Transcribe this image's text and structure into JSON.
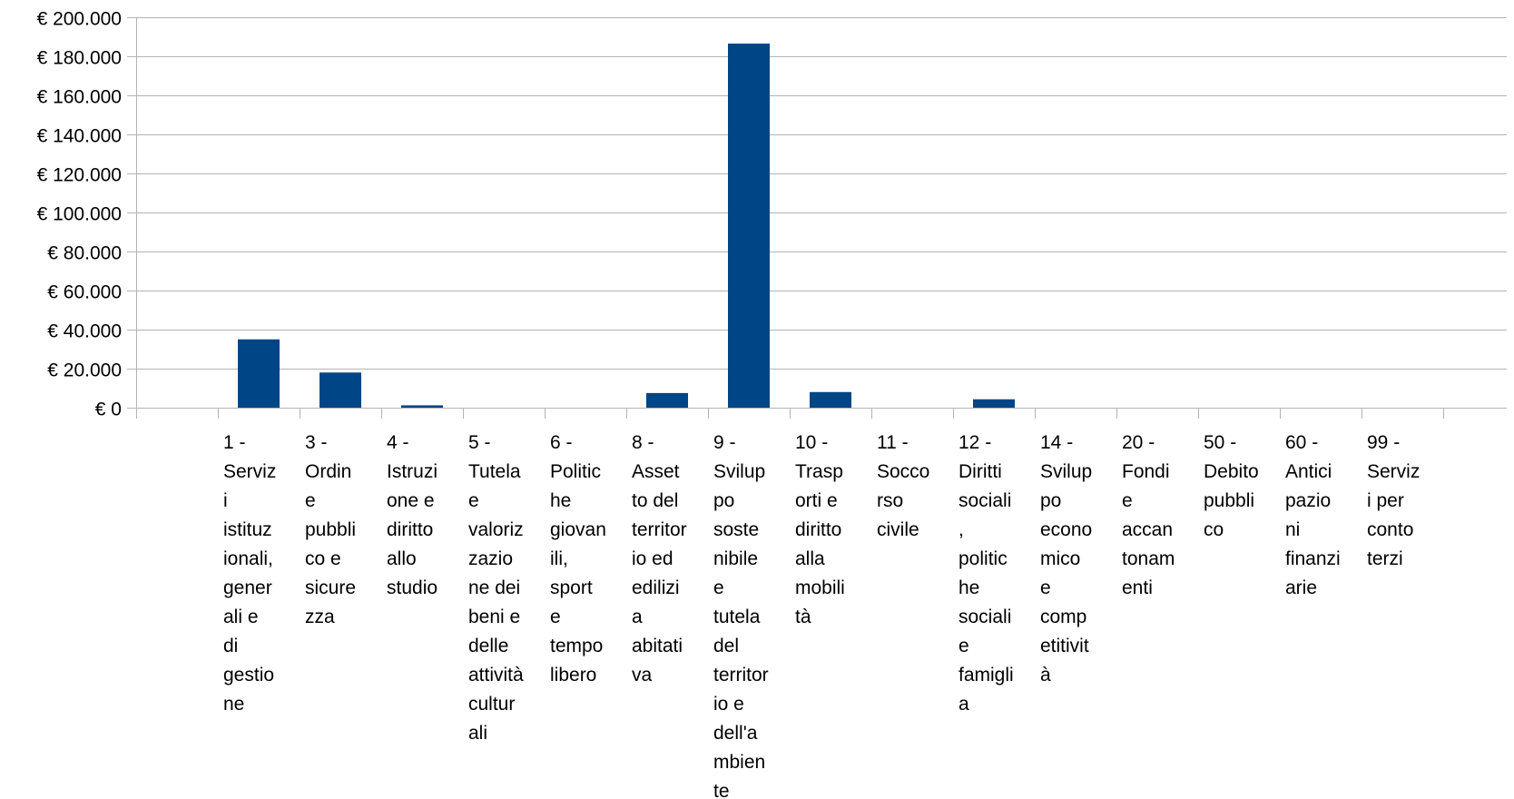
{
  "chart_data": {
    "type": "bar",
    "title": "",
    "xlabel": "",
    "ylabel": "",
    "ylim": [
      0,
      200000
    ],
    "grid": true,
    "legend": "none",
    "bar_color": "#004586",
    "y_ticks": [
      {
        "value": 0,
        "label": "€ 0"
      },
      {
        "value": 20000,
        "label": "€ 20.000"
      },
      {
        "value": 40000,
        "label": "€ 40.000"
      },
      {
        "value": 60000,
        "label": "€ 60.000"
      },
      {
        "value": 80000,
        "label": "€ 80.000"
      },
      {
        "value": 100000,
        "label": "€ 100.000"
      },
      {
        "value": 120000,
        "label": "€ 120.000"
      },
      {
        "value": 140000,
        "label": "€ 140.000"
      },
      {
        "value": 160000,
        "label": "€ 160.000"
      },
      {
        "value": 180000,
        "label": "€ 180.000"
      },
      {
        "value": 200000,
        "label": "€ 200.000"
      }
    ],
    "categories": [
      {
        "label": "",
        "lines": [],
        "value": 0
      },
      {
        "label": "1 - Servizi istituzionali, generali e di gestione",
        "lines": [
          "1 -",
          "Serviz",
          "i",
          "istituz",
          "ionali,",
          "gener",
          "ali e",
          "di",
          "gestio",
          "ne"
        ],
        "value": 35000
      },
      {
        "label": "3 - Ordine pubblico e sicurezza",
        "lines": [
          "3 -",
          "Ordin",
          "e",
          "pubbli",
          "co e",
          "sicure",
          "zza"
        ],
        "value": 18000
      },
      {
        "label": "4 - Istruzione e diritto allo studio",
        "lines": [
          "4 -",
          "Istruzi",
          "one e",
          "diritto",
          "allo",
          "studio"
        ],
        "value": 1200
      },
      {
        "label": "5 - Tutela e valorizzazione dei beni e delle attività culturali",
        "lines": [
          "5 -",
          "Tutela",
          "e",
          "valoriz",
          "zazio",
          "ne dei",
          "beni e",
          "delle",
          "attività",
          "cultur",
          "ali"
        ],
        "value": 0
      },
      {
        "label": "6 - Politiche giovanili, sport e tempo libero",
        "lines": [
          "6 -",
          "Politic",
          "he",
          "giovan",
          "ili,",
          "sport",
          "e",
          "tempo",
          "libero"
        ],
        "value": 0
      },
      {
        "label": "8 - Assetto del territorio ed edilizia abitativa",
        "lines": [
          "8 -",
          "Asset",
          "to del",
          "territor",
          "io ed",
          "edilizi",
          "a",
          "abitati",
          "va"
        ],
        "value": 7500
      },
      {
        "label": "9 - Sviluppo sostenibile e tutela del territorio e dell'ambiente",
        "lines": [
          "9 -",
          "Svilup",
          "po",
          "soste",
          "nibile",
          "e",
          "tutela",
          "del",
          "territor",
          "io e",
          "dell'a",
          "mbien",
          "te"
        ],
        "value": 186500
      },
      {
        "label": "10 - Trasporti e diritto alla mobilità",
        "lines": [
          "10 -",
          "Trasp",
          "orti e",
          "diritto",
          "alla",
          "mobili",
          "tà"
        ],
        "value": 8000
      },
      {
        "label": "11 - Soccorso civile",
        "lines": [
          "11 -",
          "Socco",
          "rso",
          "civile"
        ],
        "value": 0
      },
      {
        "label": "12 - Diritti sociali, politiche sociali e famiglia",
        "lines": [
          "12 -",
          "Diritti",
          "sociali",
          ",",
          "politic",
          "he",
          "sociali",
          "e",
          "famigli",
          "a"
        ],
        "value": 4300
      },
      {
        "label": "14 - Sviluppo economico e competitività",
        "lines": [
          "14 -",
          "Svilup",
          "po",
          "econo",
          "mico",
          "e",
          "comp",
          "etitivit",
          "à"
        ],
        "value": 0
      },
      {
        "label": "20 - Fondi e accantonamenti",
        "lines": [
          "20 -",
          "Fondi",
          "e",
          "accan",
          "tonam",
          "enti"
        ],
        "value": 0
      },
      {
        "label": "50 - Debito pubblico",
        "lines": [
          "50 -",
          "Debito",
          "pubbli",
          "co"
        ],
        "value": 0
      },
      {
        "label": "60 - Anticipazioni finanziarie",
        "lines": [
          "60 -",
          "Antici",
          "pazio",
          "ni",
          "finanzi",
          "arie"
        ],
        "value": 0
      },
      {
        "label": "99 - Servizi per conto terzi",
        "lines": [
          "99 -",
          "Serviz",
          "i per",
          "conto",
          "terzi"
        ],
        "value": 0
      },
      {
        "label": "",
        "lines": [],
        "value": 0
      }
    ]
  }
}
